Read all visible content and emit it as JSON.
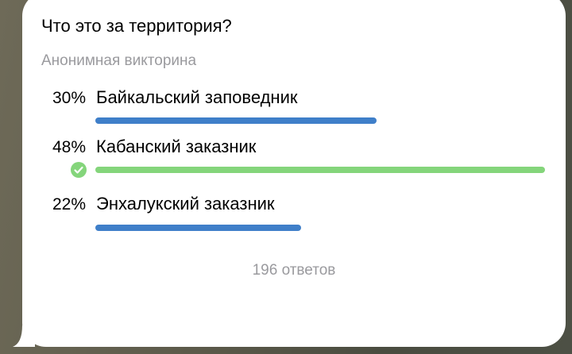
{
  "poll": {
    "question": "Что это за территория?",
    "type_label": "Анонимная викторина",
    "options": [
      {
        "percent_label": "30%",
        "percent": 30,
        "text": "Байкальский заповедник",
        "correct": false,
        "color": "#3f7fc9"
      },
      {
        "percent_label": "48%",
        "percent": 48,
        "text": "Кабанский заказник",
        "correct": true,
        "color": "#84d57b"
      },
      {
        "percent_label": "22%",
        "percent": 22,
        "text": "Энхалукский заказник",
        "correct": false,
        "color": "#3f7fc9"
      }
    ],
    "votes_label": "196 ответов",
    "correct_icon": "check-circle-icon"
  }
}
